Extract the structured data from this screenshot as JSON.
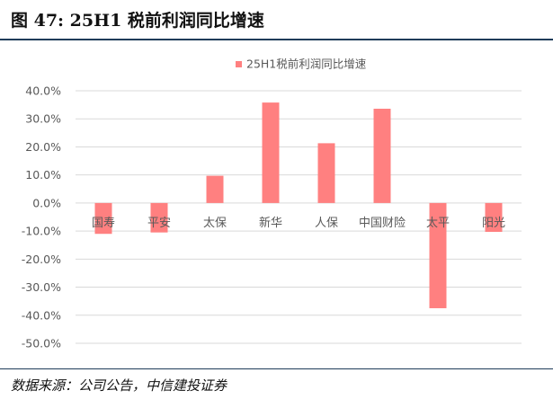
{
  "figure": {
    "title": "图 47: 25H1 税前利润同比增速",
    "source": "数据来源：公司公告，中信建投证券"
  },
  "colors": {
    "bar": "#ff8080",
    "gridline": "#d9d9d9",
    "axis_text": "#595959",
    "rule": "#1f3c5a"
  },
  "chart_data": {
    "type": "bar",
    "categories": [
      "国寿",
      "平安",
      "太保",
      "新华",
      "人保",
      "中国财险",
      "太平",
      "阳光"
    ],
    "series": [
      {
        "name": "25H1税前利润同比增速",
        "values": [
          -11.0,
          -10.5,
          9.7,
          35.8,
          21.3,
          33.6,
          -37.5,
          -10.3
        ]
      }
    ],
    "ylim": [
      -50,
      40
    ],
    "ytick_step": 10,
    "ytick_labels": [
      "40.0%",
      "30.0%",
      "20.0%",
      "10.0%",
      "0.0%",
      "-10.0%",
      "-20.0%",
      "-30.0%",
      "-40.0%",
      "-50.0%"
    ],
    "y_unit": "%",
    "grid": true,
    "legend_position": "top-center"
  }
}
